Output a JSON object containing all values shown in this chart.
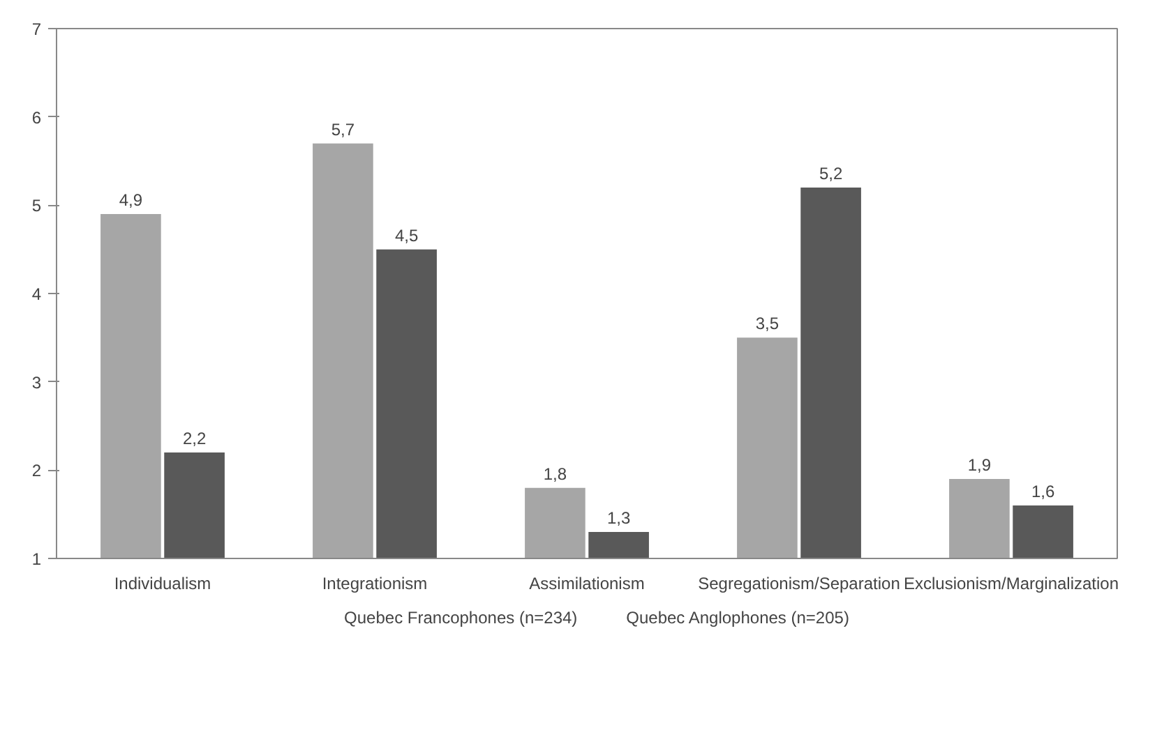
{
  "chart_data": {
    "type": "bar",
    "categories": [
      "Individualism",
      "Integrationism",
      "Assimilationism",
      "Segregationism/Separation",
      "Exclusionism/Marginalization"
    ],
    "series": [
      {
        "name": "Quebec Francophones (n=234)",
        "color": "#a6a6a6",
        "values": [
          4.9,
          5.7,
          1.8,
          3.5,
          1.9
        ],
        "value_labels": [
          "4,9",
          "5,7",
          "1,8",
          "3,5",
          "1,9"
        ]
      },
      {
        "name": "Quebec Anglophones (n=205)",
        "color": "#595959",
        "values": [
          2.2,
          4.5,
          1.3,
          5.2,
          1.6
        ],
        "value_labels": [
          "2,2",
          "4,5",
          "1,3",
          "5,2",
          "1,6"
        ]
      }
    ],
    "ylim": [
      1,
      7
    ],
    "yticks": [
      1,
      2,
      3,
      4,
      5,
      6,
      7
    ],
    "grid": false,
    "legend": "bottom"
  }
}
